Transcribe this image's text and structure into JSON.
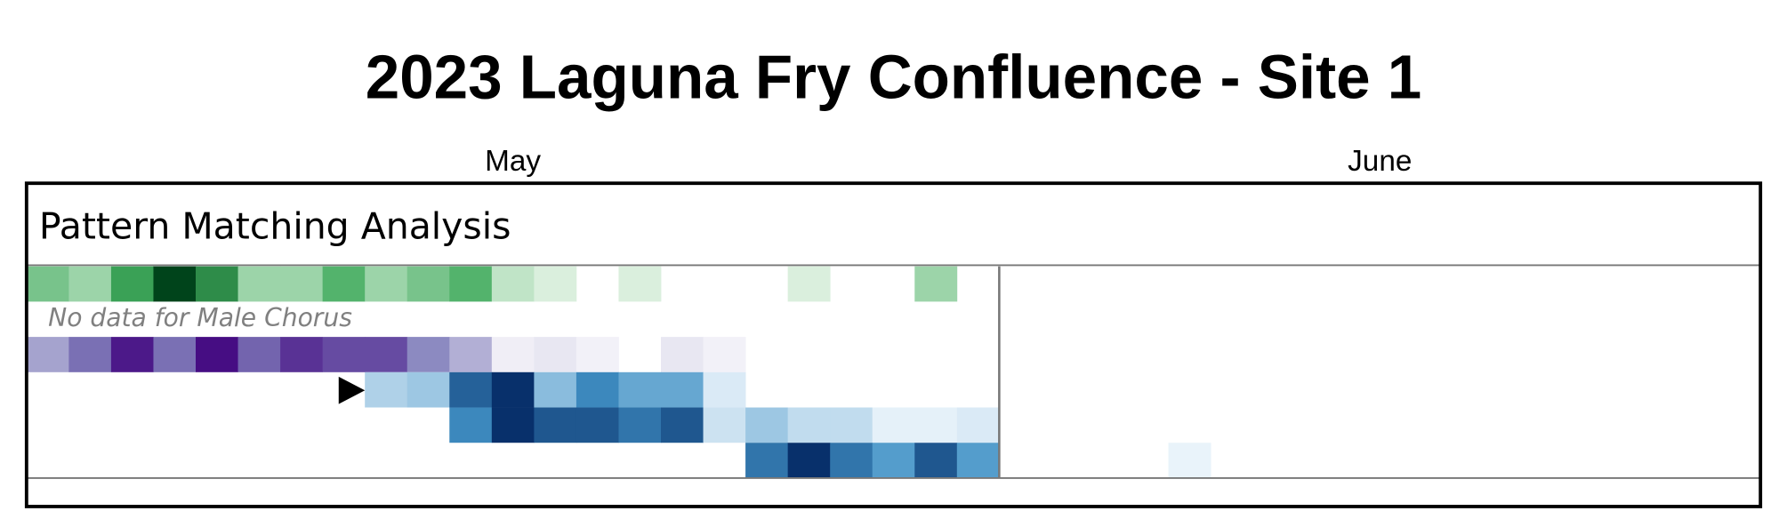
{
  "chart_data": {
    "type": "heatmap",
    "title": "2023 Laguna Fry Confluence - Site 1",
    "section_title": "Pattern Matching Analysis",
    "months": [
      {
        "name": "May",
        "columns": 23
      },
      {
        "name": "June",
        "columns": 18
      }
    ],
    "rows": [
      {
        "colors": [
          "#f7fcf5",
          "#41ab5d",
          "#00441b"
        ],
        "values": [
          0.35,
          0.25,
          0.55,
          1.0,
          0.65,
          0.25,
          0.25,
          0.45,
          0.25,
          0.35,
          0.45,
          0.15,
          0.08,
          null,
          0.08,
          null,
          null,
          null,
          0.08,
          null,
          null,
          0.25,
          null,
          null,
          null,
          null,
          null,
          null,
          null,
          null,
          null,
          null,
          null,
          null,
          null,
          null,
          null,
          null,
          null,
          null,
          null
        ]
      },
      {
        "note": "No data for Male Chorus"
      },
      {
        "colors": [
          "#fcfbfd",
          "#807dba",
          "#3f007d"
        ],
        "values": [
          0.35,
          0.55,
          0.9,
          0.55,
          0.95,
          0.6,
          0.8,
          0.7,
          0.7,
          0.45,
          0.3,
          0.05,
          0.08,
          0.04,
          null,
          0.08,
          0.04,
          null,
          null,
          null,
          null,
          null,
          null,
          null,
          null,
          null,
          null,
          null,
          null,
          null,
          null,
          null,
          null,
          null,
          null,
          null,
          null,
          null,
          null,
          null,
          null
        ]
      },
      {
        "colors": [
          "#f7fbff",
          "#4292c6",
          "#08306b"
        ],
        "values": [
          null,
          null,
          null,
          null,
          null,
          null,
          null,
          null,
          0.2,
          0.25,
          0.75,
          1.0,
          0.3,
          0.55,
          0.4,
          0.4,
          0.08,
          null,
          null,
          null,
          null,
          null,
          null,
          null,
          null,
          null,
          null,
          null,
          null,
          null,
          null,
          null,
          null,
          null,
          null,
          null,
          null,
          null,
          null,
          null,
          null
        ]
      },
      {
        "colors": [
          "#f7fbff",
          "#4292c6",
          "#08306b"
        ],
        "values": [
          null,
          null,
          null,
          null,
          null,
          null,
          null,
          null,
          null,
          null,
          0.55,
          1.0,
          0.8,
          0.8,
          0.65,
          0.8,
          0.12,
          0.25,
          0.15,
          0.15,
          0.05,
          0.05,
          0.08,
          null,
          null,
          null,
          null,
          null,
          null,
          null,
          null,
          null,
          null,
          null,
          null,
          null,
          null,
          null,
          null,
          null,
          null
        ]
      },
      {
        "colors": [
          "#f7fbff",
          "#4292c6",
          "#08306b"
        ],
        "values": [
          null,
          null,
          null,
          null,
          null,
          null,
          null,
          null,
          null,
          null,
          null,
          null,
          null,
          null,
          null,
          null,
          null,
          0.65,
          1.0,
          0.65,
          0.45,
          0.8,
          0.45,
          null,
          null,
          null,
          null,
          0.04,
          null,
          null,
          null,
          null,
          null,
          null,
          null,
          null,
          null,
          null,
          null,
          null,
          null
        ]
      }
    ]
  }
}
